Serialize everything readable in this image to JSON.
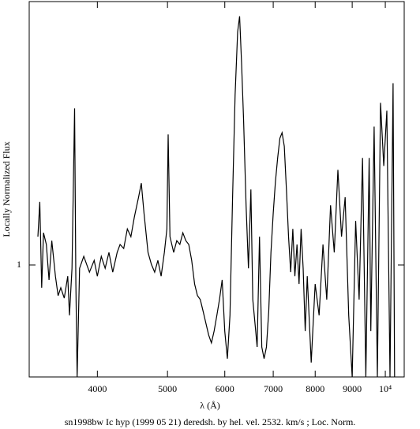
{
  "chart_data": {
    "type": "line",
    "title": "sn1998bw Ic hyp (1999 05 21) deredsh. by hel. vel.  2532. km/s ;  Loc. Norm.",
    "x_label": "λ (Å)",
    "y_label": "Locally Normalized Flux",
    "log_x": true,
    "log_y": true,
    "color": "#000000",
    "xlim": [
      3220,
      10620
    ],
    "ylim": [
      0.664,
      2.62
    ],
    "xticks": [
      4000,
      5000,
      6000,
      7000,
      8000,
      9000,
      {
        "value": 10000,
        "label": "10⁴"
      }
    ],
    "yticks": [
      1
    ],
    "x": [
      3310,
      3330,
      3350,
      3370,
      3400,
      3430,
      3460,
      3500,
      3530,
      3560,
      3600,
      3640,
      3660,
      3690,
      3720,
      3735,
      3750,
      3780,
      3830,
      3900,
      3960,
      4000,
      4050,
      4100,
      4150,
      4200,
      4260,
      4300,
      4350,
      4400,
      4450,
      4500,
      4560,
      4600,
      4640,
      4700,
      4750,
      4800,
      4850,
      4900,
      4950,
      4990,
      5010,
      5040,
      5100,
      5150,
      5200,
      5250,
      5300,
      5350,
      5400,
      5450,
      5500,
      5550,
      5600,
      5650,
      5700,
      5750,
      5800,
      5850,
      5900,
      5950,
      6000,
      6050,
      6100,
      6150,
      6200,
      6250,
      6290,
      6330,
      6370,
      6420,
      6470,
      6520,
      6560,
      6620,
      6650,
      6700,
      6750,
      6800,
      6850,
      6900,
      6950,
      7000,
      7050,
      7100,
      7150,
      7200,
      7250,
      7300,
      7350,
      7400,
      7450,
      7500,
      7550,
      7600,
      7650,
      7700,
      7750,
      7800,
      7900,
      8000,
      8100,
      8200,
      8300,
      8400,
      8500,
      8600,
      8700,
      8800,
      8900,
      9000,
      9100,
      9200,
      9300,
      9400,
      9500,
      9550,
      9650,
      9750,
      9850,
      9950,
      10050,
      10150,
      10250,
      10300
    ],
    "values": [
      1.109,
      1.26,
      0.92,
      1.125,
      1.078,
      0.947,
      1.093,
      0.96,
      0.894,
      0.92,
      0.886,
      0.96,
      0.832,
      0.988,
      1.773,
      0.933,
      0.664,
      0.988,
      1.032,
      0.974,
      1.017,
      0.96,
      1.032,
      0.988,
      1.047,
      0.974,
      1.047,
      1.078,
      1.062,
      1.141,
      1.109,
      1.192,
      1.281,
      1.349,
      1.209,
      1.047,
      1.003,
      0.974,
      1.017,
      0.96,
      1.047,
      1.141,
      1.612,
      1.109,
      1.047,
      1.093,
      1.078,
      1.125,
      1.093,
      1.078,
      1.017,
      0.933,
      0.894,
      0.881,
      0.844,
      0.808,
      0.774,
      0.752,
      0.785,
      0.832,
      0.881,
      0.947,
      0.785,
      0.71,
      0.832,
      1.281,
      1.862,
      2.344,
      2.483,
      2.089,
      1.706,
      1.244,
      0.988,
      1.318,
      0.881,
      0.785,
      0.741,
      1.109,
      0.741,
      0.71,
      0.741,
      0.844,
      1.047,
      1.209,
      1.357,
      1.479,
      1.589,
      1.622,
      1.544,
      1.318,
      1.109,
      0.974,
      1.141,
      0.96,
      1.078,
      0.933,
      1.141,
      0.988,
      0.785,
      0.96,
      0.7,
      0.933,
      0.832,
      1.078,
      0.881,
      1.244,
      1.047,
      1.416,
      1.109,
      1.281,
      0.832,
      0.664,
      1.175,
      0.881,
      1.479,
      0.664,
      1.479,
      0.785,
      1.659,
      0.664,
      1.809,
      1.436,
      1.758,
      0.664,
      1.944,
      0.664
    ]
  }
}
